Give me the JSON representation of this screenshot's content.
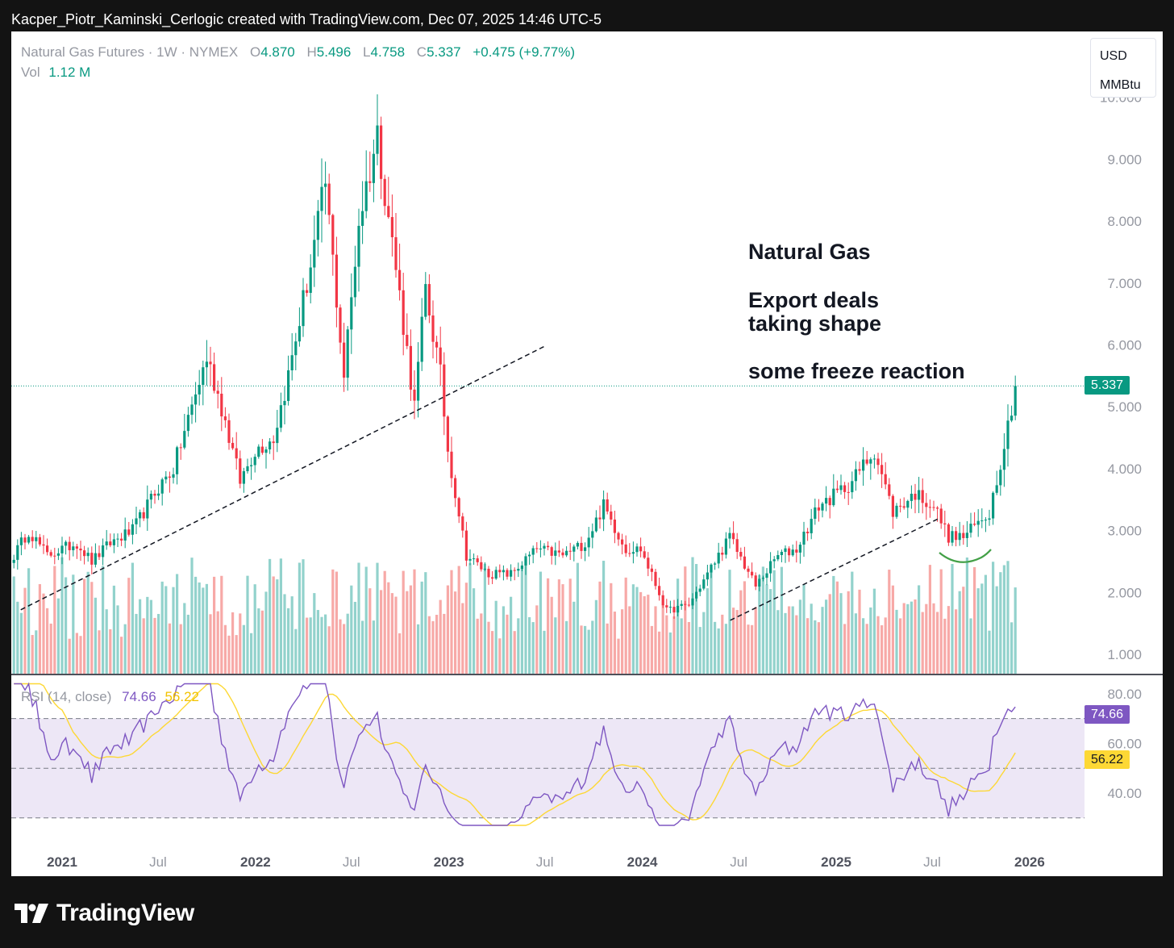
{
  "header": {
    "caption": "Kacper_Piotr_Kaminski_Cerlogic created with TradingView.com, Dec 07, 2025 14:46 UTC-5"
  },
  "legend": {
    "symbol": "Natural Gas Futures · 1W · NYMEX",
    "open_label": "O",
    "open": "4.870",
    "high_label": "H",
    "high": "5.496",
    "low_label": "L",
    "low": "4.758",
    "close_label": "C",
    "close": "5.337",
    "change": "+0.475 (+9.77%)",
    "vol_label": "Vol",
    "vol": "1.12 M"
  },
  "units": {
    "currency": "USD",
    "unit": "MMBtu"
  },
  "annotations": {
    "title": "Natural Gas",
    "line2": "Export deals",
    "line3": "taking shape",
    "line4": "some freeze reaction"
  },
  "price_badge": "5.337",
  "rsi_legend": {
    "label": "RSI (14, close)",
    "rsi": "74.66",
    "ma": "56.22"
  },
  "rsi_badges": {
    "rsi": "74.66",
    "ma": "56.22"
  },
  "brand": {
    "name": "TradingView",
    "icon": "tradingview-logo-icon"
  },
  "colors": {
    "up": "#089981",
    "down": "#f23645",
    "vol_up": "#92d2cc",
    "vol_down": "#f7a9a7",
    "rsi": "#7e57c2",
    "rsi_ma": "#fdd835",
    "rsi_band": "#ede7f6"
  },
  "chart_data": [
    {
      "type": "candlestick",
      "title": "",
      "interval": "1W",
      "x_range": [
        "2020-10",
        "2025-12"
      ],
      "x_ticks": [
        "2021",
        "Jul",
        "2022",
        "Jul",
        "2023",
        "Jul",
        "2024",
        "Jul",
        "2025",
        "Jul",
        "2026"
      ],
      "ylim": [
        0.7,
        10.0
      ],
      "y_ticks": [
        "1.000",
        "2.000",
        "3.000",
        "4.000",
        "5.000",
        "6.000",
        "7.000",
        "8.000",
        "9.000",
        "10.000"
      ],
      "scale": "linear",
      "grid": false,
      "last_close": 5.337,
      "anchors": [
        {
          "t": "2020-10-01",
          "close": 2.6
        },
        {
          "t": "2020-11-01",
          "close": 3.0
        },
        {
          "t": "2020-12-01",
          "close": 2.6
        },
        {
          "t": "2021-02-01",
          "close": 2.8
        },
        {
          "t": "2021-03-01",
          "close": 2.5
        },
        {
          "t": "2021-04-01",
          "close": 2.8
        },
        {
          "t": "2021-05-15",
          "close": 3.0
        },
        {
          "t": "2021-07-01",
          "close": 3.7
        },
        {
          "t": "2021-08-01",
          "close": 4.0
        },
        {
          "t": "2021-09-01",
          "close": 5.0
        },
        {
          "t": "2021-10-01",
          "close": 5.8
        },
        {
          "t": "2021-11-01",
          "close": 5.0
        },
        {
          "t": "2021-12-01",
          "close": 3.8
        },
        {
          "t": "2022-01-01",
          "close": 4.3
        },
        {
          "t": "2022-02-01",
          "close": 4.5
        },
        {
          "t": "2022-03-01",
          "close": 5.5
        },
        {
          "t": "2022-04-15",
          "close": 7.3
        },
        {
          "t": "2022-05-15",
          "close": 8.6
        },
        {
          "t": "2022-06-20",
          "close": 5.5
        },
        {
          "t": "2022-07-15",
          "close": 8.0
        },
        {
          "t": "2022-08-20",
          "close": 9.4
        },
        {
          "t": "2022-10-01",
          "close": 6.8
        },
        {
          "t": "2022-10-25",
          "close": 5.0
        },
        {
          "t": "2022-11-20",
          "close": 6.9
        },
        {
          "t": "2022-12-15",
          "close": 5.5
        },
        {
          "t": "2023-01-01",
          "close": 4.3
        },
        {
          "t": "2023-02-01",
          "close": 2.6
        },
        {
          "t": "2023-03-15",
          "close": 2.3
        },
        {
          "t": "2023-05-01",
          "close": 2.3
        },
        {
          "t": "2023-06-15",
          "close": 2.7
        },
        {
          "t": "2023-08-01",
          "close": 2.6
        },
        {
          "t": "2023-09-15",
          "close": 2.8
        },
        {
          "t": "2023-10-20",
          "close": 3.4
        },
        {
          "t": "2023-12-01",
          "close": 2.7
        },
        {
          "t": "2024-01-01",
          "close": 2.7
        },
        {
          "t": "2024-02-15",
          "close": 1.7
        },
        {
          "t": "2024-04-01",
          "close": 1.8
        },
        {
          "t": "2024-05-01",
          "close": 2.3
        },
        {
          "t": "2024-06-15",
          "close": 2.9
        },
        {
          "t": "2024-08-01",
          "close": 2.1
        },
        {
          "t": "2024-09-15",
          "close": 2.6
        },
        {
          "t": "2024-10-15",
          "close": 2.7
        },
        {
          "t": "2024-12-01",
          "close": 3.4
        },
        {
          "t": "2025-01-01",
          "close": 3.6
        },
        {
          "t": "2025-02-01",
          "close": 3.8
        },
        {
          "t": "2025-03-15",
          "close": 4.3
        },
        {
          "t": "2025-04-15",
          "close": 3.3
        },
        {
          "t": "2025-06-01",
          "close": 3.6
        },
        {
          "t": "2025-07-01",
          "close": 3.4
        },
        {
          "t": "2025-08-01",
          "close": 2.9
        },
        {
          "t": "2025-09-01",
          "close": 2.9
        },
        {
          "t": "2025-10-15",
          "close": 3.3
        },
        {
          "t": "2025-11-15",
          "close": 4.4
        },
        {
          "t": "2025-12-07",
          "close": 5.337
        }
      ],
      "trendlines": [
        {
          "from": {
            "t": "2020-10-15",
            "price": 1.72
          },
          "to": {
            "t": "2023-07-01",
            "price": 5.98
          }
        },
        {
          "from": {
            "t": "2024-06-15",
            "price": 1.55
          },
          "to": {
            "t": "2025-07-15",
            "price": 3.2
          }
        }
      ]
    },
    {
      "type": "line",
      "title": "RSI (14, close)",
      "ylim": [
        27,
        84
      ],
      "y_ticks": [
        "40.00",
        "60.00",
        "80.00"
      ],
      "bands": [
        30,
        50,
        70
      ],
      "grid": false,
      "series": [
        {
          "name": "RSI",
          "last": 74.66
        },
        {
          "name": "RSI-based MA",
          "last": 56.22
        }
      ]
    }
  ]
}
